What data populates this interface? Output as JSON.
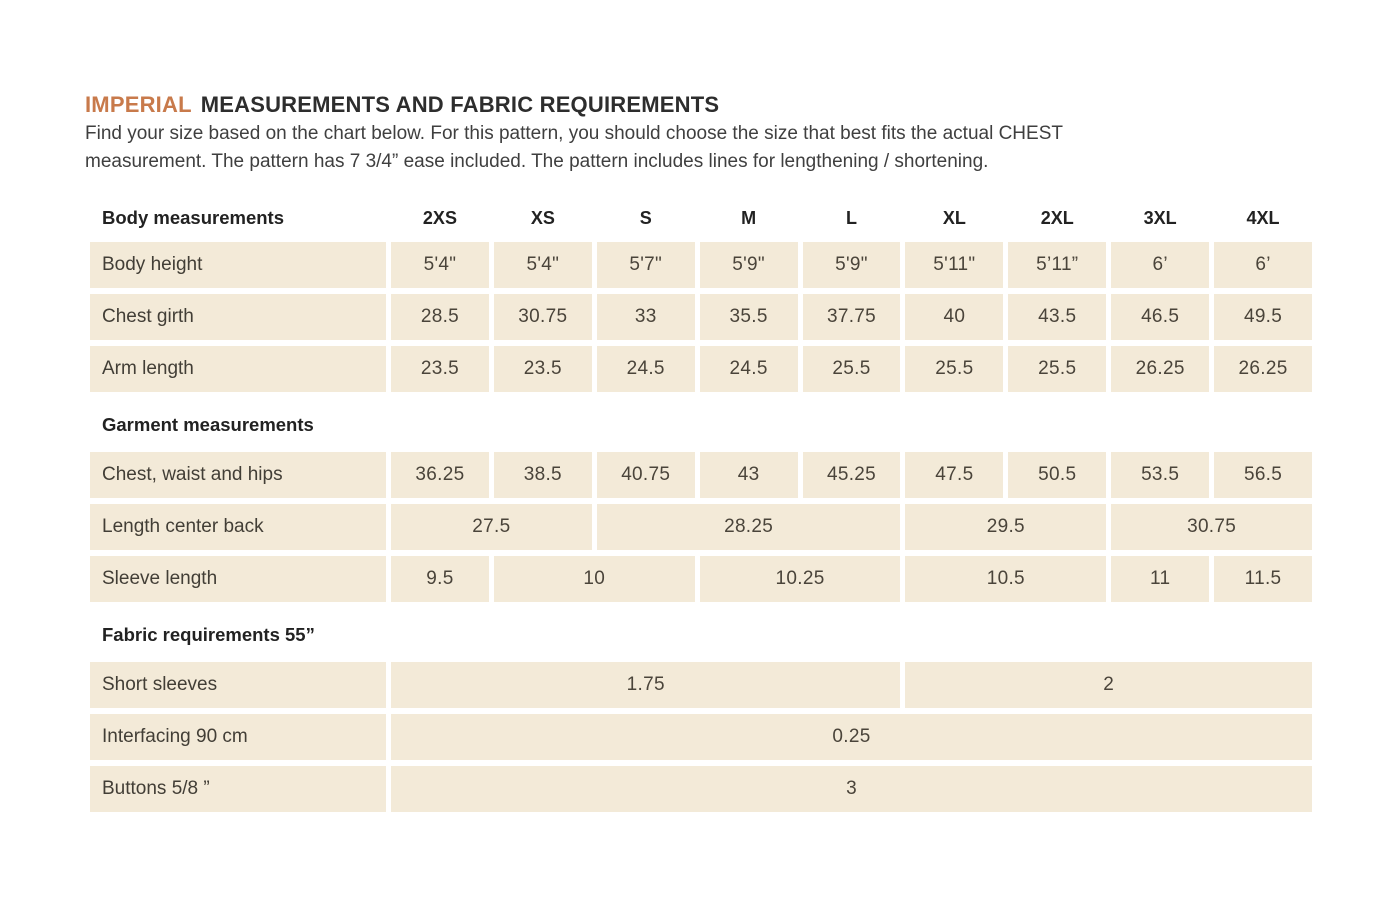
{
  "page": {
    "title": {
      "highlight": "IMPERIAL",
      "rest": "MEASUREMENTS AND FABRIC REQUIREMENTS"
    },
    "intro_lines": [
      "Find your size based on the chart below. For this pattern, you should choose the size that best fits the actual CHEST",
      "measurement. The pattern has 7 3/4” ease included. The pattern includes lines for lengthening / shortening."
    ]
  },
  "colors": {
    "accent_orange": "#c87a4b",
    "cell_beige": "#f3ead8",
    "heading_text": "#222222",
    "body_text": "#3f3f3f"
  },
  "table": {
    "size_columns": [
      "2XS",
      "XS",
      "S",
      "M",
      "L",
      "XL",
      "2XL",
      "3XL",
      "4XL"
    ],
    "sections": [
      {
        "title": "Body measurements",
        "header_with_sizes": true,
        "rows": [
          {
            "label": "Body height",
            "cells": [
              {
                "v": "5'4\"",
                "span": 1
              },
              {
                "v": "5'4\"",
                "span": 1
              },
              {
                "v": "5'7\"",
                "span": 1
              },
              {
                "v": "5'9\"",
                "span": 1
              },
              {
                "v": "5'9\"",
                "span": 1
              },
              {
                "v": "5'11\"",
                "span": 1
              },
              {
                "v": "5’11”",
                "span": 1
              },
              {
                "v": "6’",
                "span": 1
              },
              {
                "v": "6’",
                "span": 1
              }
            ]
          },
          {
            "label": "Chest girth",
            "cells": [
              {
                "v": "28.5",
                "span": 1
              },
              {
                "v": "30.75",
                "span": 1
              },
              {
                "v": "33",
                "span": 1
              },
              {
                "v": "35.5",
                "span": 1
              },
              {
                "v": "37.75",
                "span": 1
              },
              {
                "v": "40",
                "span": 1
              },
              {
                "v": "43.5",
                "span": 1
              },
              {
                "v": "46.5",
                "span": 1
              },
              {
                "v": "49.5",
                "span": 1
              }
            ]
          },
          {
            "label": "Arm length",
            "cells": [
              {
                "v": "23.5",
                "span": 1
              },
              {
                "v": "23.5",
                "span": 1
              },
              {
                "v": "24.5",
                "span": 1
              },
              {
                "v": "24.5",
                "span": 1
              },
              {
                "v": "25.5",
                "span": 1
              },
              {
                "v": "25.5",
                "span": 1
              },
              {
                "v": "25.5",
                "span": 1
              },
              {
                "v": "26.25",
                "span": 1
              },
              {
                "v": "26.25",
                "span": 1
              }
            ]
          }
        ]
      },
      {
        "title": "Garment measurements",
        "header_with_sizes": false,
        "rows": [
          {
            "label": "Chest, waist and hips",
            "cells": [
              {
                "v": "36.25",
                "span": 1
              },
              {
                "v": "38.5",
                "span": 1
              },
              {
                "v": "40.75",
                "span": 1
              },
              {
                "v": "43",
                "span": 1
              },
              {
                "v": "45.25",
                "span": 1
              },
              {
                "v": "47.5",
                "span": 1
              },
              {
                "v": "50.5",
                "span": 1
              },
              {
                "v": "53.5",
                "span": 1
              },
              {
                "v": "56.5",
                "span": 1
              }
            ]
          },
          {
            "label": "Length center back",
            "cells": [
              {
                "v": "27.5",
                "span": 2
              },
              {
                "v": "28.25",
                "span": 3
              },
              {
                "v": "29.5",
                "span": 2
              },
              {
                "v": "30.75",
                "span": 2
              }
            ]
          },
          {
            "label": "Sleeve length",
            "cells": [
              {
                "v": "9.5",
                "span": 1
              },
              {
                "v": "10",
                "span": 2
              },
              {
                "v": "10.25",
                "span": 2
              },
              {
                "v": "10.5",
                "span": 2
              },
              {
                "v": "11",
                "span": 1
              },
              {
                "v": "11.5",
                "span": 1
              }
            ]
          }
        ]
      },
      {
        "title": "Fabric requirements 55”",
        "header_with_sizes": false,
        "rows": [
          {
            "label": "Short sleeves",
            "cells": [
              {
                "v": "1.75",
                "span": 5
              },
              {
                "v": "2",
                "span": 4
              }
            ]
          },
          {
            "label": "Interfacing 90 cm",
            "cells": [
              {
                "v": "0.25",
                "span": 9
              }
            ]
          },
          {
            "label": "Buttons 5/8 ”",
            "cells": [
              {
                "v": "3",
                "span": 9
              }
            ]
          }
        ]
      }
    ]
  }
}
